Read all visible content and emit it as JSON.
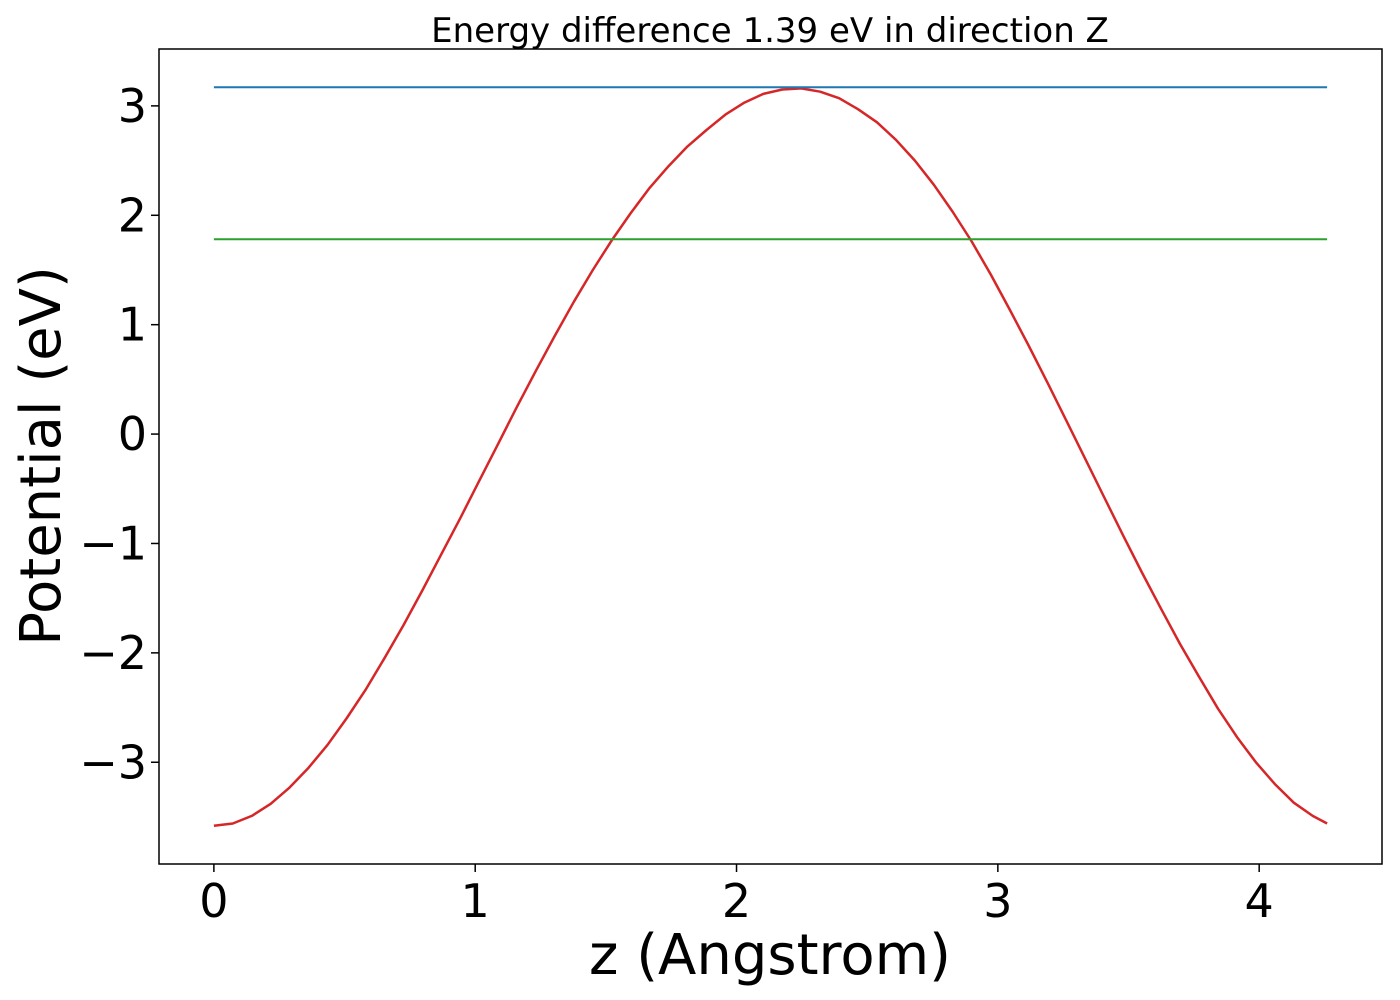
{
  "chart_data": {
    "type": "line",
    "title": "Energy difference 1.39 eV in direction Z",
    "xlabel": "z (Angstrom)",
    "ylabel": "Potential (eV)",
    "xlim": [
      -0.21,
      4.47
    ],
    "ylim": [
      -3.93,
      3.52
    ],
    "xticks": [
      0,
      1,
      2,
      3,
      4
    ],
    "xtick_labels": [
      "0",
      "1",
      "2",
      "3",
      "4"
    ],
    "yticks": [
      -3,
      -2,
      -1,
      0,
      1,
      2,
      3
    ],
    "ytick_labels": [
      "−3",
      "−2",
      "−1",
      "0",
      "1",
      "2",
      "3"
    ],
    "grid": false,
    "series": [
      {
        "color": "#d62728",
        "x": [
          0,
          0.0725,
          0.145,
          0.2175,
          0.29,
          0.3625,
          0.435,
          0.5075,
          0.58,
          0.6525,
          0.725,
          0.7975,
          0.87,
          0.9425,
          1.015,
          1.0875,
          1.16,
          1.2325,
          1.305,
          1.3775,
          1.45,
          1.5225,
          1.595,
          1.6675,
          1.74,
          1.8125,
          1.885,
          1.9575,
          2.03,
          2.1025,
          2.175,
          2.2475,
          2.32,
          2.3925,
          2.465,
          2.5375,
          2.61,
          2.6825,
          2.755,
          2.8275,
          2.9,
          2.9725,
          3.045,
          3.1175,
          3.19,
          3.2625,
          3.335,
          3.4075,
          3.48,
          3.5525,
          3.625,
          3.6975,
          3.77,
          3.8425,
          3.915,
          3.9875,
          4.06,
          4.1325,
          4.205,
          4.26
        ],
        "y": [
          -3.58,
          -3.56,
          -3.49,
          -3.38,
          -3.23,
          -3.05,
          -2.84,
          -2.6,
          -2.34,
          -2.05,
          -1.75,
          -1.43,
          -1.1,
          -0.77,
          -0.43,
          -0.09,
          0.25,
          0.58,
          0.9,
          1.21,
          1.5,
          1.77,
          2.02,
          2.25,
          2.45,
          2.63,
          2.78,
          2.92,
          3.03,
          3.11,
          3.15,
          3.16,
          3.13,
          3.07,
          2.97,
          2.85,
          2.69,
          2.5,
          2.28,
          2.03,
          1.76,
          1.46,
          1.14,
          0.81,
          0.47,
          0.12,
          -0.23,
          -0.58,
          -0.93,
          -1.27,
          -1.6,
          -1.92,
          -2.22,
          -2.51,
          -2.77,
          -3.0,
          -3.2,
          -3.37,
          -3.49,
          -3.56
        ]
      },
      {
        "color": "#1f77b4",
        "x": [
          0,
          4.26
        ],
        "y": [
          3.17,
          3.17
        ]
      },
      {
        "color": "#2ca02c",
        "x": [
          0,
          4.26
        ],
        "y": [
          1.78,
          1.78
        ]
      }
    ]
  }
}
